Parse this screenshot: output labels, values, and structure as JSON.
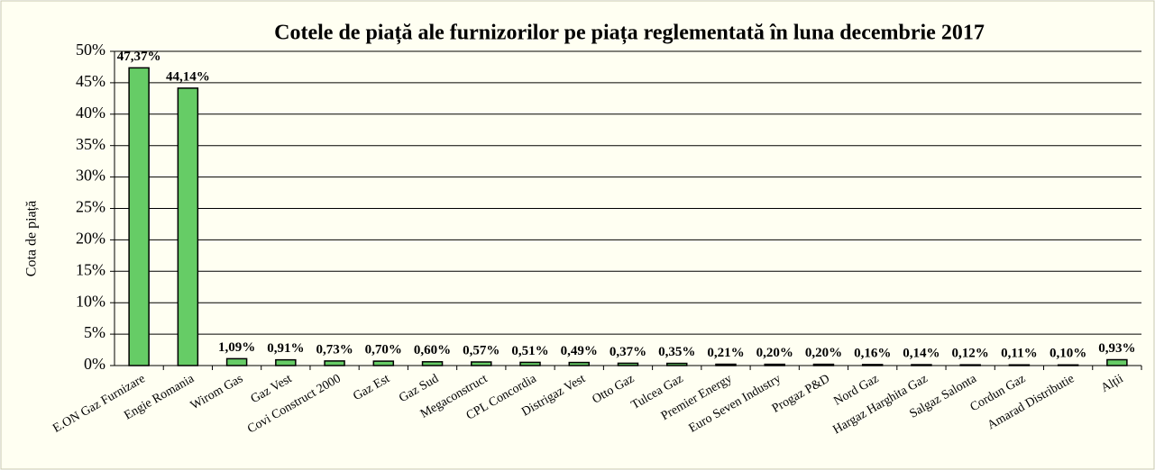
{
  "chart_data": {
    "type": "bar",
    "title": "Cotele de piață ale furnizorilor pe piața reglementată în luna decembrie 2017",
    "y_label": "Cota de piață",
    "categories": [
      "E.ON Gaz Furnizare",
      "Engie Romania",
      "Wirom Gas",
      "Gaz Vest",
      "Covi Construct 2000",
      "Gaz Est",
      "Gaz Sud",
      "Megaconstruct",
      "CPL Concordia",
      "Distrigaz Vest",
      "Otto Gaz",
      "Tulcea Gaz",
      "Premier Energy",
      "Euro Seven Industry",
      "Progaz P&D",
      "Nord Gaz",
      "Hargaz Harghita Gaz",
      "Salgaz Salonta",
      "Cordun Gaz",
      "Amarad Distributie",
      "Alții"
    ],
    "values": [
      47.37,
      44.14,
      1.09,
      0.91,
      0.73,
      0.7,
      0.6,
      0.57,
      0.51,
      0.49,
      0.37,
      0.35,
      0.21,
      0.2,
      0.2,
      0.16,
      0.14,
      0.12,
      0.11,
      0.1,
      0.93
    ],
    "value_labels": [
      "47,37%",
      "44,14%",
      "1,09%",
      "0,91%",
      "0,73%",
      "0,70%",
      "0,60%",
      "0,57%",
      "0,51%",
      "0,49%",
      "0,37%",
      "0,35%",
      "0,21%",
      "0,20%",
      "0,20%",
      "0,16%",
      "0,14%",
      "0,12%",
      "0,11%",
      "0,10%",
      "0,93%"
    ],
    "color": "#66cc66",
    "ylim": [
      0,
      50
    ],
    "yticks": [
      {
        "value": 0,
        "label": "0%"
      },
      {
        "value": 5,
        "label": "5%"
      },
      {
        "value": 10,
        "label": "10%"
      },
      {
        "value": 15,
        "label": "15%"
      },
      {
        "value": 20,
        "label": "20%"
      },
      {
        "value": 25,
        "label": "25%"
      },
      {
        "value": 30,
        "label": "30%"
      },
      {
        "value": 35,
        "label": "35%"
      },
      {
        "value": 40,
        "label": "40%"
      },
      {
        "value": 45,
        "label": "45%"
      },
      {
        "value": 50,
        "label": "50%"
      }
    ],
    "grid": true
  }
}
